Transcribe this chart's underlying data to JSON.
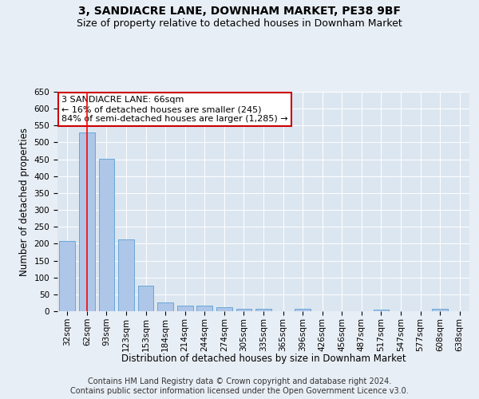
{
  "title": "3, SANDIACRE LANE, DOWNHAM MARKET, PE38 9BF",
  "subtitle": "Size of property relative to detached houses in Downham Market",
  "xlabel": "Distribution of detached houses by size in Downham Market",
  "ylabel": "Number of detached properties",
  "categories": [
    "32sqm",
    "62sqm",
    "93sqm",
    "123sqm",
    "153sqm",
    "184sqm",
    "214sqm",
    "244sqm",
    "274sqm",
    "305sqm",
    "335sqm",
    "365sqm",
    "396sqm",
    "426sqm",
    "456sqm",
    "487sqm",
    "517sqm",
    "547sqm",
    "577sqm",
    "608sqm",
    "638sqm"
  ],
  "values": [
    208,
    530,
    452,
    212,
    76,
    27,
    17,
    16,
    11,
    8,
    8,
    0,
    7,
    0,
    0,
    0,
    5,
    0,
    0,
    6,
    0
  ],
  "bar_color": "#aec6e8",
  "bar_edge_color": "#5a9fd4",
  "red_line_x": 1,
  "annotation_text": "3 SANDIACRE LANE: 66sqm\n← 16% of detached houses are smaller (245)\n84% of semi-detached houses are larger (1,285) →",
  "annotation_box_color": "#ffffff",
  "annotation_box_edge_color": "#cc0000",
  "ylim": [
    0,
    650
  ],
  "yticks": [
    0,
    50,
    100,
    150,
    200,
    250,
    300,
    350,
    400,
    450,
    500,
    550,
    600,
    650
  ],
  "bg_color": "#e8eef5",
  "plot_bg_color": "#dce6f0",
  "footer": "Contains HM Land Registry data © Crown copyright and database right 2024.\nContains public sector information licensed under the Open Government Licence v3.0.",
  "title_fontsize": 10,
  "subtitle_fontsize": 9,
  "axis_label_fontsize": 8.5,
  "tick_fontsize": 7.5,
  "annotation_fontsize": 8,
  "footer_fontsize": 7
}
